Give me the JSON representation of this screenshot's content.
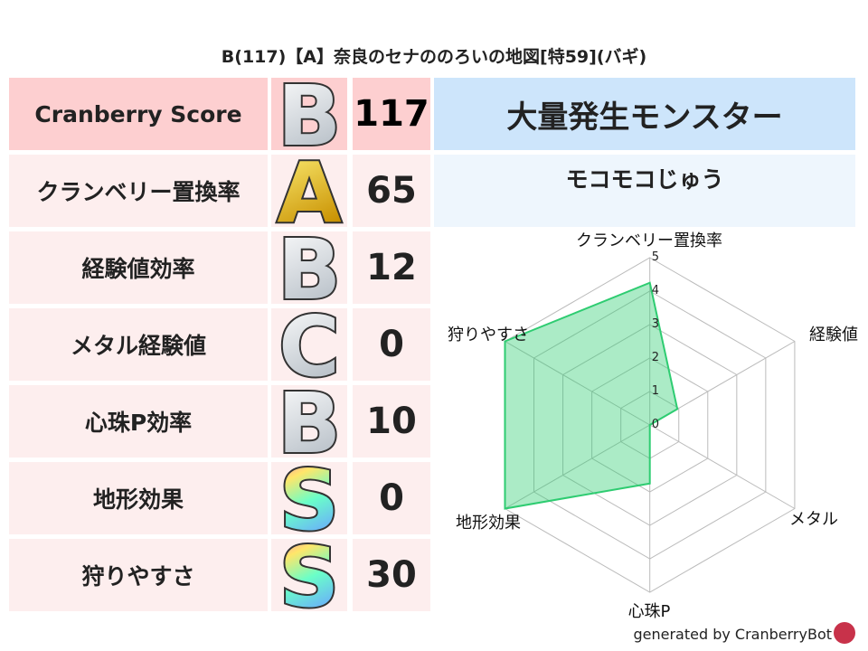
{
  "title": "B(117)【A】奈良のセナののろいの地図[特59](バギ)",
  "rows": [
    {
      "label": "Cranberry Score",
      "rank": "B",
      "value": "117"
    },
    {
      "label": "クランベリー置換率",
      "rank": "A",
      "value": "65"
    },
    {
      "label": "経験値効率",
      "rank": "B",
      "value": "12"
    },
    {
      "label": "メタル経験値",
      "rank": "C",
      "value": "0"
    },
    {
      "label": "心珠P効率",
      "rank": "B",
      "value": "10"
    },
    {
      "label": "地形効果",
      "rank": "S",
      "value": "0"
    },
    {
      "label": "狩りやすさ",
      "rank": "S",
      "value": "30"
    }
  ],
  "monster": {
    "header": "大量発生モンスター",
    "name": "モコモコじゅう"
  },
  "footer": "generated by CranberryBot",
  "colors": {
    "header_pink": "#fdcfd0",
    "row_pink": "#fdeeee",
    "monster_blue": "#cde5fb",
    "fill": "#2ecc71"
  },
  "chart_data": {
    "type": "radar",
    "axes": [
      "クランベリー置換率",
      "経験値",
      "メタル",
      "心珠P",
      "地形効果",
      "狩りやすさ"
    ],
    "values": [
      4.25,
      0.95,
      0,
      1.75,
      5,
      5
    ],
    "ticks": [
      "0",
      "1",
      "2",
      "3",
      "4",
      "5"
    ],
    "range": [
      0,
      5
    ],
    "grid": true
  }
}
